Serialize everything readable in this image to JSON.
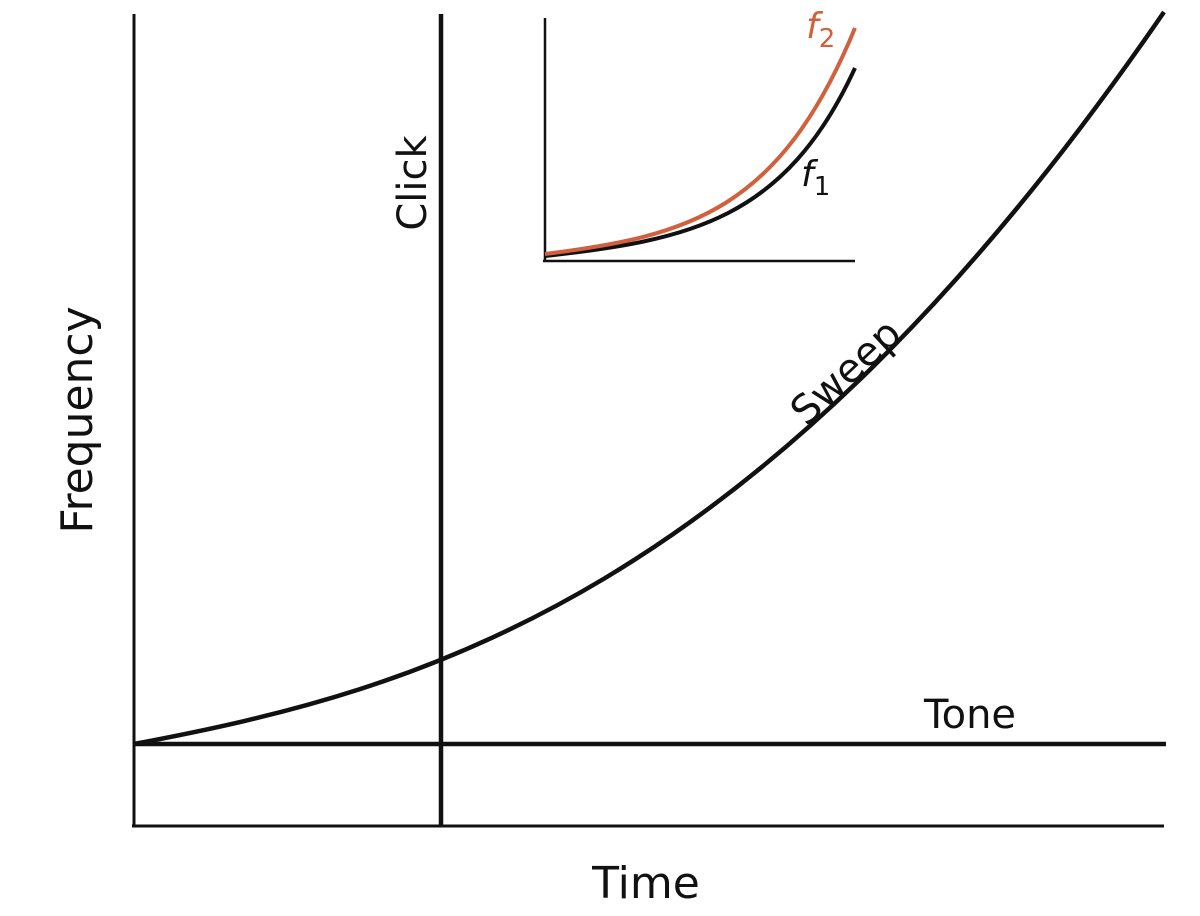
{
  "labels": {
    "x_axis": "Time",
    "y_axis": "Frequency",
    "click": "Click",
    "sweep": "Sweep",
    "tone": "Tone"
  },
  "inset": {
    "f1": {
      "base": "f",
      "sub": "1"
    },
    "f2": {
      "base": "f",
      "sub": "2"
    }
  },
  "colors": {
    "ink": "#111111",
    "f2": "#d1603d"
  }
}
